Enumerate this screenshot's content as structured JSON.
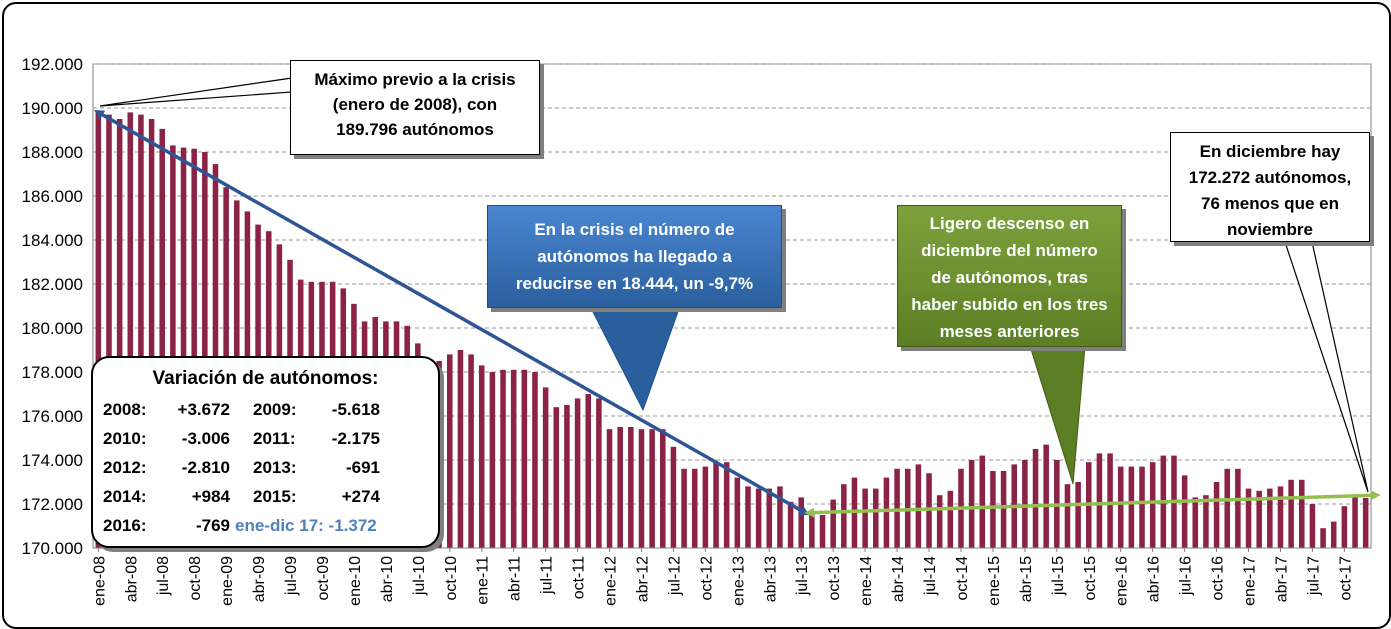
{
  "chart_data": {
    "type": "bar",
    "ylim": [
      170000,
      192000
    ],
    "yticks": [
      "170.000",
      "172.000",
      "174.000",
      "176.000",
      "178.000",
      "180.000",
      "182.000",
      "184.000",
      "186.000",
      "188.000",
      "190.000",
      "192.000"
    ],
    "yticks_values": [
      170000,
      172000,
      174000,
      176000,
      178000,
      180000,
      182000,
      184000,
      186000,
      188000,
      190000,
      192000
    ],
    "grid": "horizontal dashed",
    "bar_color": "#8b2347",
    "arrow_colors": {
      "crisis": "#2f5597",
      "recent": "#92c050"
    },
    "categories": [
      "ene-08",
      "feb-08",
      "mar-08",
      "abr-08",
      "may-08",
      "jun-08",
      "jul-08",
      "ago-08",
      "sep-08",
      "oct-08",
      "nov-08",
      "dic-08",
      "ene-09",
      "feb-09",
      "mar-09",
      "abr-09",
      "may-09",
      "jun-09",
      "jul-09",
      "ago-09",
      "sep-09",
      "oct-09",
      "nov-09",
      "dic-09",
      "ene-10",
      "feb-10",
      "mar-10",
      "abr-10",
      "may-10",
      "jun-10",
      "jul-10",
      "ago-10",
      "sep-10",
      "oct-10",
      "nov-10",
      "dic-10",
      "ene-11",
      "feb-11",
      "mar-11",
      "abr-11",
      "may-11",
      "jun-11",
      "jul-11",
      "ago-11",
      "sep-11",
      "oct-11",
      "nov-11",
      "dic-11",
      "ene-12",
      "feb-12",
      "mar-12",
      "abr-12",
      "may-12",
      "jun-12",
      "jul-12",
      "ago-12",
      "sep-12",
      "oct-12",
      "nov-12",
      "dic-12",
      "ene-13",
      "feb-13",
      "mar-13",
      "abr-13",
      "may-13",
      "jun-13",
      "jul-13",
      "ago-13",
      "sep-13",
      "oct-13",
      "nov-13",
      "dic-13",
      "ene-14",
      "feb-14",
      "mar-14",
      "abr-14",
      "may-14",
      "jun-14",
      "jul-14",
      "ago-14",
      "sep-14",
      "oct-14",
      "nov-14",
      "dic-14",
      "ene-15",
      "feb-15",
      "mar-15",
      "abr-15",
      "may-15",
      "jun-15",
      "jul-15",
      "ago-15",
      "sep-15",
      "oct-15",
      "nov-15",
      "dic-15",
      "ene-16",
      "feb-16",
      "mar-16",
      "abr-16",
      "may-16",
      "jun-16",
      "jul-16",
      "ago-16",
      "sep-16",
      "oct-16",
      "nov-16",
      "dic-16",
      "ene-17",
      "feb-17",
      "mar-17",
      "abr-17",
      "may-17",
      "jun-17",
      "jul-17",
      "ago-17",
      "sep-17",
      "oct-17",
      "nov-17",
      "dic-17"
    ],
    "xtick_labels": [
      "ene-08",
      "abr-08",
      "jul-08",
      "oct-08",
      "ene-09",
      "abr-09",
      "jul-09",
      "oct-09",
      "ene-10",
      "abr-10",
      "jul-10",
      "oct-10",
      "ene-11",
      "abr-11",
      "jul-11",
      "oct-11",
      "ene-12",
      "abr-12",
      "jul-12",
      "oct-12",
      "ene-13",
      "abr-13",
      "jul-13",
      "oct-13",
      "ene-14",
      "abr-14",
      "jul-14",
      "oct-14",
      "ene-15",
      "abr-15",
      "jul-15",
      "oct-15",
      "ene-16",
      "abr-16",
      "jul-16",
      "oct-16",
      "ene-17",
      "abr-17",
      "jul-17",
      "oct-17"
    ],
    "values": [
      189796,
      189700,
      189500,
      189800,
      189700,
      189500,
      189050,
      188300,
      188200,
      188150,
      188000,
      187450,
      186400,
      185800,
      185300,
      184700,
      184400,
      183800,
      183100,
      182200,
      182100,
      182100,
      182100,
      181800,
      181100,
      180300,
      180500,
      180300,
      180300,
      180100,
      179300,
      178500,
      178500,
      178800,
      179000,
      178800,
      178300,
      178000,
      178100,
      178100,
      178100,
      178000,
      177300,
      176400,
      176500,
      176800,
      177000,
      176800,
      175400,
      175500,
      175500,
      175400,
      175400,
      175400,
      174600,
      173600,
      173600,
      173700,
      173900,
      173900,
      173200,
      172800,
      172700,
      172700,
      172800,
      172100,
      172300,
      171600,
      171500,
      172200,
      172900,
      173200,
      172700,
      172700,
      173200,
      173600,
      173600,
      173800,
      173400,
      172400,
      172600,
      173600,
      174000,
      174200,
      173500,
      173500,
      173800,
      174000,
      174500,
      174700,
      174000,
      172900,
      173000,
      173900,
      174300,
      174300,
      173700,
      173700,
      173700,
      173900,
      174200,
      174200,
      173300,
      172300,
      172400,
      173000,
      173600,
      173600,
      172700,
      172600,
      172700,
      172800,
      173100,
      173100,
      172000,
      170900,
      171200,
      171900,
      172348,
      172272
    ]
  },
  "callouts": {
    "max_lines": [
      "Máximo previo a la crisis",
      "(enero de 2008), con",
      "189.796  autónomos"
    ],
    "dic_lines": [
      "En diciembre hay",
      "172.272  autónomos,",
      "76 menos que en",
      "noviembre"
    ],
    "crisis_lines": [
      "En la crisis el número de",
      "autónomos ha llegado a",
      "reducirse en 18.444,  un -9,7%"
    ],
    "ligero_lines": [
      "Ligero descenso en",
      "diciembre del número",
      "de autónomos, tras",
      "haber subido en los tres",
      "meses anteriores"
    ]
  },
  "variation": {
    "title": "Variación de autónomos:",
    "items": [
      {
        "year": "2008:",
        "value": "+3.672"
      },
      {
        "year": "2009:",
        "value": "-5.618"
      },
      {
        "year": "2010:",
        "value": "-3.006"
      },
      {
        "year": "2011:",
        "value": "-2.175"
      },
      {
        "year": "2012:",
        "value": "-2.810"
      },
      {
        "year": "2013:",
        "value": "-691"
      },
      {
        "year": "2014:",
        "value": "+984"
      },
      {
        "year": "2015:",
        "value": "+274"
      },
      {
        "year": "2016:",
        "value": "-769"
      }
    ],
    "last": "ene-dic 17: -1.372",
    "last_color": "#4f81bd"
  }
}
